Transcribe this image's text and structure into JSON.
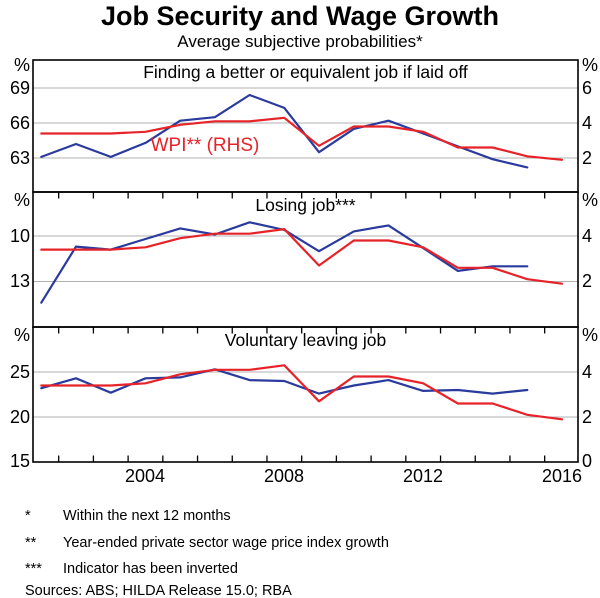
{
  "title": "Job Security and Wage Growth",
  "subtitle": "Average subjective probabilities*",
  "percent_sign": "%",
  "colors": {
    "blue": "#2a3b9d",
    "red": "#e62329",
    "grid": "#b0b0b0",
    "frame": "#000000"
  },
  "x_axis": {
    "labels": [
      "2004",
      "2008",
      "2012",
      "2016"
    ],
    "label_years": [
      2004,
      2008,
      2012,
      2016
    ],
    "x_min": 2000.76,
    "x_max": 2016.46,
    "year_tick_first": 2002,
    "year_tick_last": 2016
  },
  "chart_data": {
    "type": "line",
    "title": "Job Security and Wage Growth",
    "subtitle": "Average subjective probabilities*",
    "panels": [
      {
        "title": "Finding a better or equivalent job if laid off",
        "left_axis": {
          "unit": "%",
          "labels": [
            "69",
            "66",
            "63"
          ],
          "tick_values": [
            69,
            66,
            63
          ],
          "gridline_values": [
            69,
            66,
            63
          ],
          "top_value": 71.4,
          "bottom_value": 60.09
        },
        "right_axis": {
          "unit": "%",
          "labels": [
            "6",
            "4",
            "2"
          ],
          "tick_values": [
            6,
            4,
            2
          ],
          "top_value": 7.6,
          "bottom_value": 0.06
        },
        "lhs_series": {
          "color_key": "blue",
          "axis": "left",
          "years": [
            2001,
            2002,
            2003,
            2004,
            2005,
            2006,
            2007,
            2008,
            2009,
            2010,
            2011,
            2012,
            2013,
            2014,
            2015
          ],
          "values": [
            63.1,
            64.2,
            63.1,
            64.3,
            66.2,
            66.5,
            68.4,
            67.3,
            63.5,
            65.5,
            66.2,
            65.1,
            64.0,
            62.9,
            62.2
          ]
        },
        "rhs_series": {
          "label": "WPI** (RHS)",
          "color_key": "red",
          "axis": "right",
          "years": [
            2001,
            2002,
            2003,
            2004,
            2005,
            2006,
            2007,
            2008,
            2009,
            2010,
            2011,
            2012,
            2013,
            2014,
            2015,
            2016
          ],
          "values": [
            3.4,
            3.4,
            3.4,
            3.5,
            3.9,
            4.1,
            4.1,
            4.3,
            2.7,
            3.8,
            3.8,
            3.5,
            2.6,
            2.6,
            2.1,
            1.9
          ]
        }
      },
      {
        "title": "Losing job***",
        "left_axis": {
          "unit": "%",
          "labels": [
            "10",
            "13"
          ],
          "tick_values": [
            10,
            13
          ],
          "gridline_values": [
            10,
            13
          ],
          "top_value": 7.1,
          "bottom_value": 16.0,
          "inverted": true
        },
        "right_axis": {
          "unit": "%",
          "labels": [
            "4",
            "2"
          ],
          "tick_values": [
            4,
            2
          ],
          "top_value": 5.93,
          "bottom_value": 0.0
        },
        "lhs_series": {
          "color_key": "blue",
          "axis": "left",
          "years": [
            2001,
            2002,
            2003,
            2004,
            2005,
            2006,
            2007,
            2008,
            2009,
            2010,
            2011,
            2012,
            2013,
            2014,
            2015
          ],
          "values": [
            14.4,
            10.7,
            10.9,
            10.2,
            9.5,
            9.9,
            9.1,
            9.6,
            11.0,
            9.7,
            9.3,
            10.8,
            12.3,
            12.0,
            12.0
          ]
        },
        "rhs_series": {
          "label": "WPI** (RHS)",
          "color_key": "red",
          "axis": "right",
          "years": [
            2001,
            2002,
            2003,
            2004,
            2005,
            2006,
            2007,
            2008,
            2009,
            2010,
            2011,
            2012,
            2013,
            2014,
            2015,
            2016
          ],
          "values": [
            3.4,
            3.4,
            3.4,
            3.5,
            3.9,
            4.1,
            4.1,
            4.3,
            2.7,
            3.8,
            3.8,
            3.5,
            2.6,
            2.6,
            2.1,
            1.9
          ]
        }
      },
      {
        "title": "Voluntary leaving job",
        "left_axis": {
          "unit": "%",
          "labels": [
            "25",
            "20",
            "15"
          ],
          "tick_values": [
            25,
            20,
            15
          ],
          "gridline_values": [
            25,
            20
          ],
          "top_value": 30,
          "bottom_value": 15
        },
        "right_axis": {
          "unit": "%",
          "labels": [
            "4",
            "2",
            "0"
          ],
          "tick_values": [
            4,
            2,
            0
          ],
          "top_value": 6,
          "bottom_value": 0
        },
        "lhs_series": {
          "color_key": "blue",
          "axis": "left",
          "years": [
            2001,
            2002,
            2003,
            2004,
            2005,
            2006,
            2007,
            2008,
            2009,
            2010,
            2011,
            2012,
            2013,
            2014,
            2015
          ],
          "values": [
            23.2,
            24.3,
            22.7,
            24.3,
            24.4,
            25.3,
            24.1,
            24.0,
            22.6,
            23.5,
            24.1,
            22.9,
            23.0,
            22.6,
            23.0
          ]
        },
        "rhs_series": {
          "label": "WPI** (RHS)",
          "color_key": "red",
          "axis": "right",
          "years": [
            2001,
            2002,
            2003,
            2004,
            2005,
            2006,
            2007,
            2008,
            2009,
            2010,
            2011,
            2012,
            2013,
            2014,
            2015,
            2016
          ],
          "values": [
            3.4,
            3.4,
            3.4,
            3.5,
            3.9,
            4.1,
            4.1,
            4.3,
            2.7,
            3.8,
            3.8,
            3.5,
            2.6,
            2.6,
            2.1,
            1.9
          ]
        }
      }
    ]
  },
  "footnotes": [
    {
      "marker": "*",
      "text": "Within the next 12 months"
    },
    {
      "marker": "**",
      "text": "Year-ended private sector wage price index growth"
    },
    {
      "marker": "***",
      "text": "Indicator has been inverted"
    }
  ],
  "sources": "Sources: ABS; HILDA Release 15.0; RBA"
}
